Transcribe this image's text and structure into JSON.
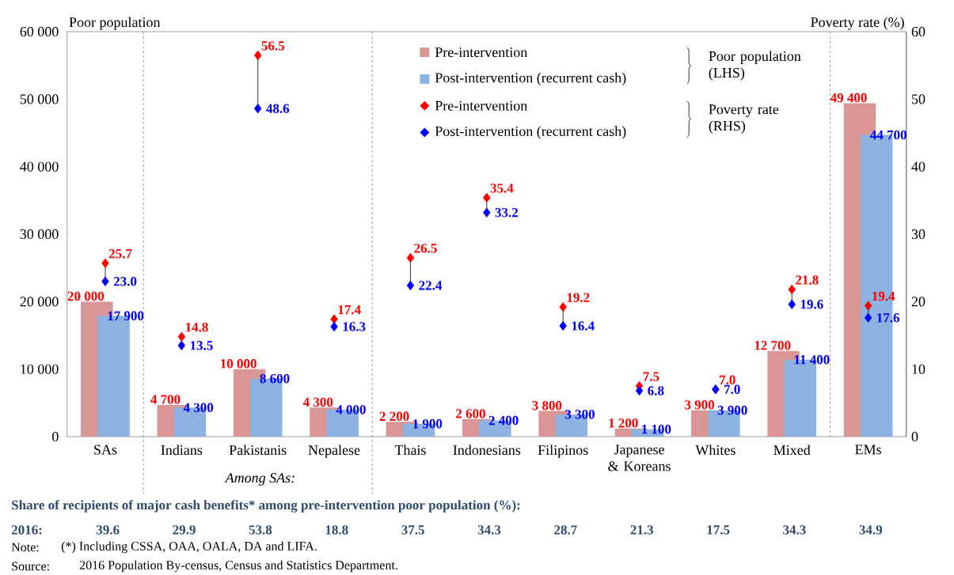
{
  "chart_data": {
    "type": "bar",
    "categories": [
      "SAs",
      "Indians",
      "Pakistanis",
      "Nepalese",
      "Thais",
      "Indonesians",
      "Filipinos",
      "Japanese & Koreans",
      "Whites",
      "Mixed",
      "EMs"
    ],
    "series": [
      {
        "name": "Pre-intervention",
        "color": "#d99694",
        "values": [
          20000,
          4700,
          10000,
          4300,
          2200,
          2600,
          3800,
          1200,
          3900,
          12700,
          49400
        ],
        "value_labels": [
          "20 000",
          "4 700",
          "10 000",
          "4 300",
          "2 200",
          "2 600",
          "3 800",
          "1 200",
          "3 900",
          "12 700",
          "49 400"
        ]
      },
      {
        "name": "Post-intervention (recurrent cash)",
        "color": "#8db3e2",
        "values": [
          17900,
          4300,
          8600,
          4000,
          1900,
          2400,
          3300,
          1100,
          3900,
          11400,
          44700
        ],
        "value_labels": [
          "17 900",
          "4 300",
          "8 600",
          "4 000",
          "1 900",
          "2 400",
          "3 300",
          "1 100",
          "3 900",
          "11 400",
          "44 700"
        ]
      },
      {
        "name": "Pre-intervention",
        "type": "scatter",
        "axis": "y2",
        "color": "#ff0000",
        "values": [
          25.7,
          14.8,
          56.5,
          17.4,
          26.5,
          35.4,
          19.2,
          7.5,
          7.0,
          21.8,
          19.4
        ],
        "value_labels": [
          "25.7",
          "14.8",
          "56.5",
          "17.4",
          "26.5",
          "35.4",
          "19.2",
          "7.5",
          "7.0",
          "21.8",
          "19.4"
        ]
      },
      {
        "name": "Post-intervention (recurrent cash)",
        "type": "scatter",
        "axis": "y2",
        "color": "#0000ff",
        "values": [
          23.0,
          13.5,
          48.6,
          16.3,
          22.4,
          33.2,
          16.4,
          6.8,
          7.0,
          19.6,
          17.6
        ],
        "value_labels": [
          "23.0",
          "13.5",
          "48.6",
          "16.3",
          "22.4",
          "33.2",
          "16.4",
          "6.8",
          "7.0",
          "19.6",
          "17.6"
        ]
      }
    ],
    "marker": "diamond",
    "ylabel": "Poor population",
    "y2label": "Poverty rate (%)",
    "ylim": [
      0,
      60000
    ],
    "yticks": [
      0,
      {
        "value": 10000,
        "label": "10 000"
      },
      {
        "value": 20000,
        "label": "20 000"
      },
      {
        "value": 30000,
        "label": "30 000"
      },
      {
        "value": 40000,
        "label": "40 000"
      },
      {
        "value": 50000,
        "label": "50 000"
      },
      {
        "value": 60000,
        "label": "60 000"
      }
    ],
    "y2lim": [
      0,
      60
    ],
    "y2ticks": [
      0,
      10,
      20,
      30,
      40,
      50,
      60
    ],
    "legend": "top",
    "annotations": [
      "Poor population (LHS)",
      "Poverty rate (RHS)",
      "Among SAs:",
      "Share of recipients of major cash benefits* among pre-intervention poor population (%):",
      "2016:",
      "39.6",
      "29.9",
      "53.8",
      "18.8",
      "37.5",
      "34.3",
      "28.7",
      "21.3",
      "17.5",
      "34.3",
      "34.9",
      "Note:",
      "(*) Including CSSA, OAA, OALA, DA and LIFA.",
      "Source:",
      "2016 Population By-census, Census and Statistics Department."
    ]
  }
}
